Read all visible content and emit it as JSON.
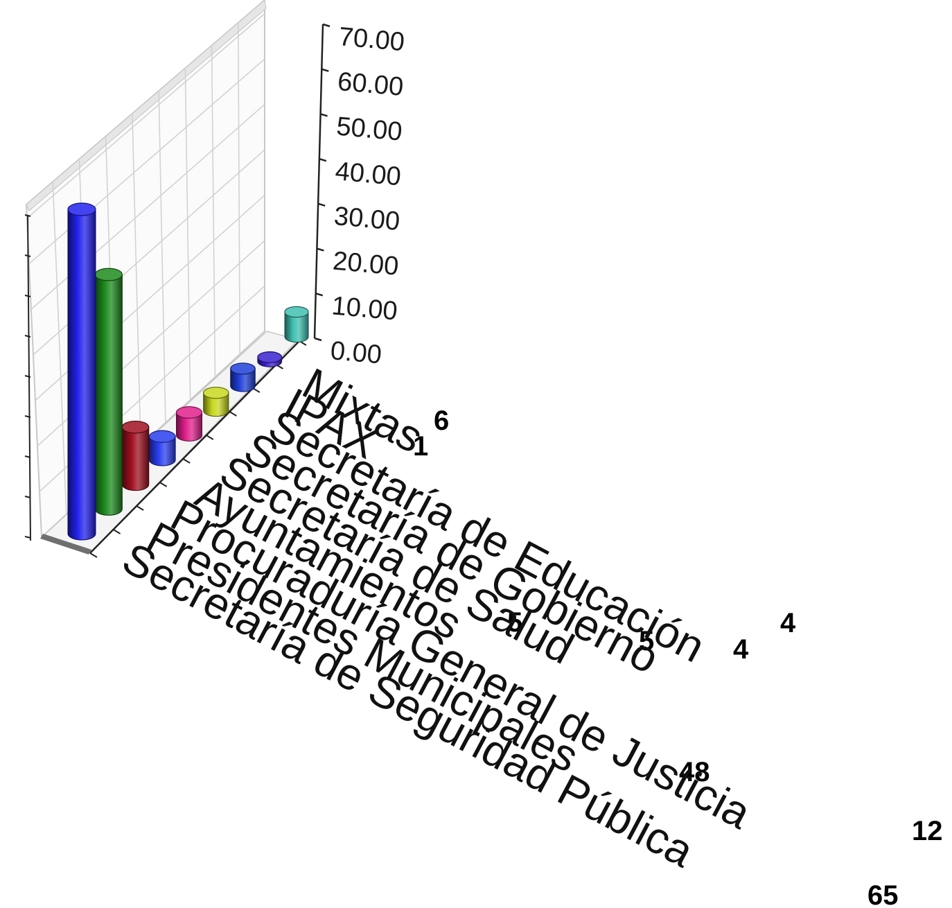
{
  "chart_data": {
    "type": "bar",
    "style": "3d-cylinder",
    "title": "",
    "xlabel": "",
    "ylabel": "",
    "ylim": [
      0,
      70
    ],
    "yticks": [
      "0.00",
      "10.00",
      "20.00",
      "30.00",
      "40.00",
      "50.00",
      "60.00",
      "70.00"
    ],
    "grid": true,
    "legend": "none",
    "categories": [
      "Secretaría de Seguridad Pública",
      "Presidentes Municipales",
      "Procuraduría General de Justicia",
      "Ayuntamientos",
      "Secretaría de Salud",
      "Secretaría de Gobierno",
      "Secretaría de Educación",
      "IPAX",
      "Mixtas"
    ],
    "values": [
      65,
      48,
      12,
      5,
      5,
      4,
      4,
      1,
      6
    ],
    "value_labels": [
      "65",
      "48",
      "12",
      "5",
      "5",
      "4",
      "4",
      "1",
      "6"
    ],
    "colors": [
      "#2222ee",
      "#1d8a1d",
      "#a01020",
      "#2a3ef0",
      "#e0208c",
      "#c8d820",
      "#1f3fd8",
      "#3a22d0",
      "#40c0b0"
    ]
  }
}
